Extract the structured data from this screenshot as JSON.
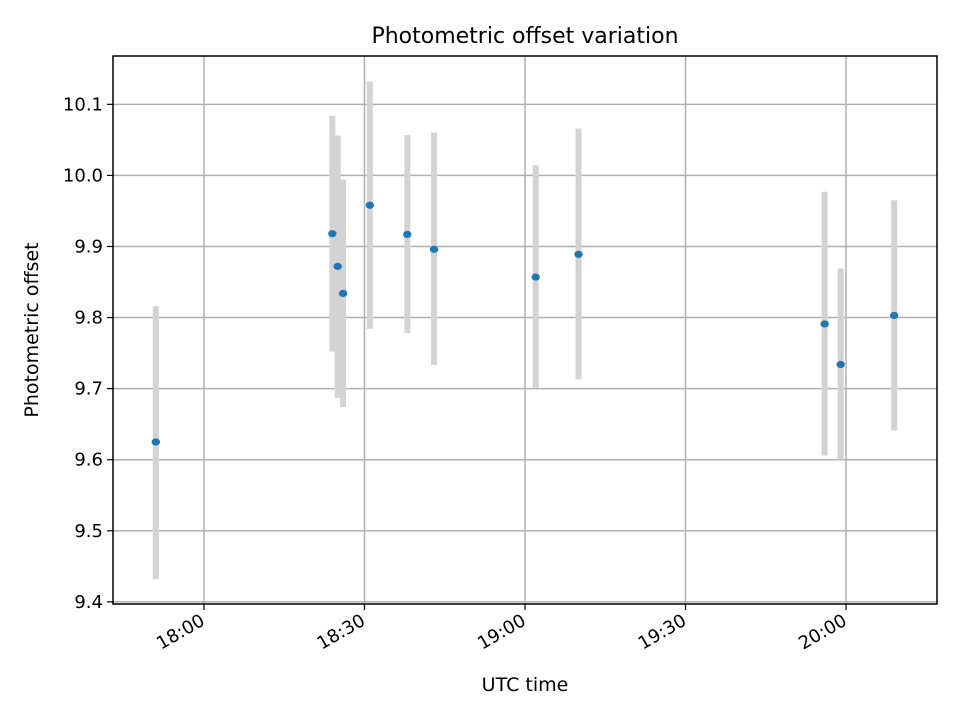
{
  "chart_data": {
    "type": "scatter",
    "title": "Photometric offset variation",
    "xlabel": "UTC time",
    "ylabel": "Photometric offset",
    "x_ticks": [
      "18:00",
      "18:30",
      "19:00",
      "19:30",
      "20:00"
    ],
    "y_ticks": [
      "9.4",
      "9.5",
      "9.6",
      "9.7",
      "9.8",
      "9.9",
      "10.0",
      "10.1"
    ],
    "xlim": [
      "17:43",
      "20:17"
    ],
    "ylim": [
      9.397,
      10.168
    ],
    "grid": true,
    "colors": {
      "point": "#1f77b4",
      "errorbar": "#d3d3d3",
      "grid": "#b0b0b0"
    },
    "points": [
      {
        "x": "17:51",
        "y": 9.625,
        "yerr_low": 9.432,
        "yerr_high": 9.816
      },
      {
        "x": "18:24",
        "y": 9.918,
        "yerr_low": 9.752,
        "yerr_high": 10.084
      },
      {
        "x": "18:25",
        "y": 9.872,
        "yerr_low": 9.687,
        "yerr_high": 10.056
      },
      {
        "x": "18:26",
        "y": 9.834,
        "yerr_low": 9.674,
        "yerr_high": 9.994
      },
      {
        "x": "18:31",
        "y": 9.958,
        "yerr_low": 9.784,
        "yerr_high": 10.132
      },
      {
        "x": "18:38",
        "y": 9.917,
        "yerr_low": 9.778,
        "yerr_high": 10.057
      },
      {
        "x": "18:43",
        "y": 9.896,
        "yerr_low": 9.733,
        "yerr_high": 10.06
      },
      {
        "x": "19:02",
        "y": 9.857,
        "yerr_low": 9.701,
        "yerr_high": 10.014
      },
      {
        "x": "19:10",
        "y": 9.889,
        "yerr_low": 9.713,
        "yerr_high": 10.066
      },
      {
        "x": "19:56",
        "y": 9.791,
        "yerr_low": 9.606,
        "yerr_high": 9.977
      },
      {
        "x": "19:59",
        "y": 9.734,
        "yerr_low": 9.6,
        "yerr_high": 9.869
      },
      {
        "x": "20:09",
        "y": 9.803,
        "yerr_low": 9.641,
        "yerr_high": 9.965
      }
    ]
  }
}
